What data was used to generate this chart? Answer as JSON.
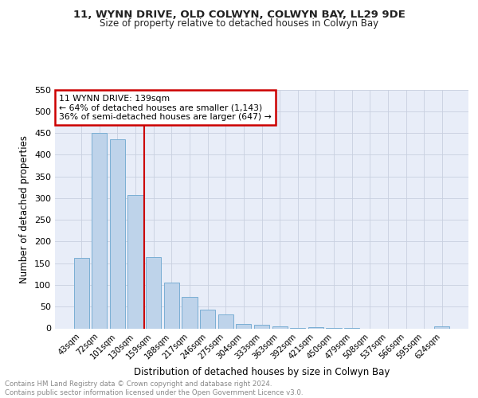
{
  "title": "11, WYNN DRIVE, OLD COLWYN, COLWYN BAY, LL29 9DE",
  "subtitle": "Size of property relative to detached houses in Colwyn Bay",
  "xlabel": "Distribution of detached houses by size in Colwyn Bay",
  "ylabel": "Number of detached properties",
  "bar_labels": [
    "43sqm",
    "72sqm",
    "101sqm",
    "130sqm",
    "159sqm",
    "188sqm",
    "217sqm",
    "246sqm",
    "275sqm",
    "304sqm",
    "333sqm",
    "363sqm",
    "392sqm",
    "421sqm",
    "450sqm",
    "479sqm",
    "508sqm",
    "537sqm",
    "566sqm",
    "595sqm",
    "624sqm"
  ],
  "bar_values": [
    163,
    450,
    436,
    307,
    165,
    106,
    73,
    44,
    33,
    10,
    8,
    5,
    1,
    2,
    1,
    1,
    0,
    0,
    0,
    0,
    4
  ],
  "bar_color": "#bed3ea",
  "bar_edge_color": "#7aaed4",
  "vline_color": "#cc0000",
  "annotation_text": "11 WYNN DRIVE: 139sqm\n← 64% of detached houses are smaller (1,143)\n36% of semi-detached houses are larger (647) →",
  "annotation_box_color": "#ffffff",
  "annotation_box_edge": "#cc0000",
  "ylim": [
    0,
    550
  ],
  "yticks": [
    0,
    50,
    100,
    150,
    200,
    250,
    300,
    350,
    400,
    450,
    500,
    550
  ],
  "footer_line1": "Contains HM Land Registry data © Crown copyright and database right 2024.",
  "footer_line2": "Contains public sector information licensed under the Open Government Licence v3.0.",
  "bg_color": "#e8edf8",
  "fig_color": "#ffffff"
}
